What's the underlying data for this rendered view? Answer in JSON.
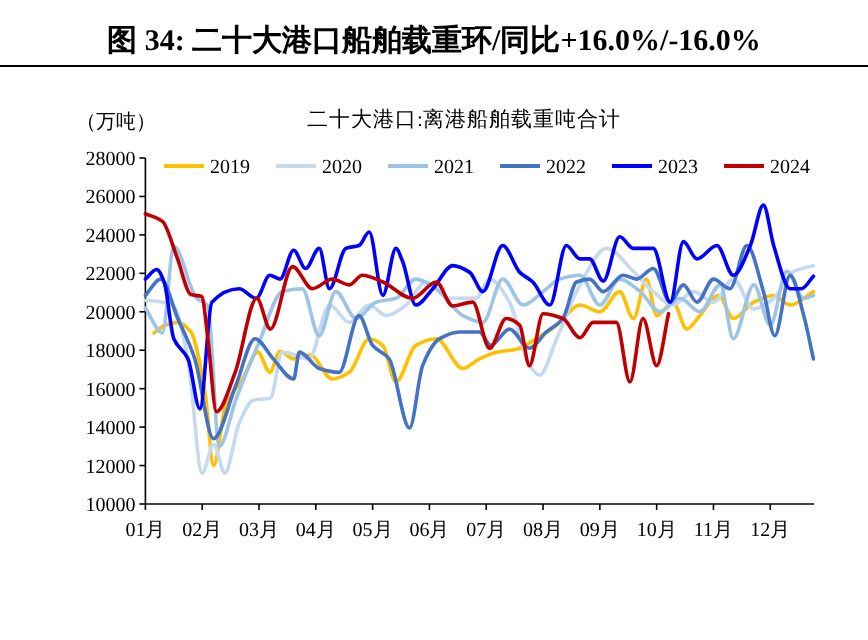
{
  "chart_data": {
    "type": "line",
    "title": "图 34:  二十大港口船舶载重环/同比+16.0%/-16.0%",
    "subtitle": "二十大港口:离港船舶载重吨合计",
    "ylabel": "（万吨）",
    "legend": "top",
    "xlim": [
      1,
      12.77
    ],
    "xticks": [
      {
        "value": 1,
        "label": "01月"
      },
      {
        "value": 2,
        "label": "02月"
      },
      {
        "value": 3,
        "label": "03月"
      },
      {
        "value": 4,
        "label": "04月"
      },
      {
        "value": 5,
        "label": "05月"
      },
      {
        "value": 6,
        "label": "06月"
      },
      {
        "value": 7,
        "label": "07月"
      },
      {
        "value": 8,
        "label": "08月"
      },
      {
        "value": 9,
        "label": "09月"
      },
      {
        "value": 10,
        "label": "10月"
      },
      {
        "value": 11,
        "label": "11月"
      },
      {
        "value": 12,
        "label": "12月"
      }
    ],
    "ylim": [
      10000,
      28000
    ],
    "yticks": [
      10000,
      12000,
      14000,
      16000,
      18000,
      20000,
      22000,
      24000,
      26000,
      28000
    ],
    "series": [
      {
        "name": "2019",
        "color": "#ffc000",
        "x": [
          1.15,
          1.35,
          1.57,
          1.8,
          2.05,
          2.2,
          2.41,
          2.71,
          2.98,
          3.19,
          3.37,
          3.61,
          3.9,
          4.29,
          4.59,
          4.94,
          5.18,
          5.41,
          5.76,
          6.12,
          6.59,
          6.88,
          7.18,
          7.53,
          7.88,
          8.24,
          8.65,
          9.0,
          9.35,
          9.59,
          9.82,
          10.0,
          10.29,
          10.53,
          10.76,
          11.09,
          11.35,
          11.71,
          12.06,
          12.35,
          12.76
        ],
        "values": [
          18900,
          19300,
          19450,
          18950,
          15800,
          12000,
          15100,
          16500,
          17900,
          16850,
          17950,
          17550,
          17750,
          16500,
          16850,
          18600,
          18250,
          16350,
          18250,
          18600,
          17050,
          17550,
          17900,
          18050,
          18600,
          19300,
          20350,
          20000,
          21050,
          19650,
          21700,
          19800,
          20500,
          19100,
          19800,
          20850,
          19650,
          20500,
          20850,
          20350,
          21050
        ]
      },
      {
        "name": "2020",
        "color": "#c5d9f1",
        "x": [
          1.0,
          1.3,
          1.5,
          1.75,
          2.0,
          2.2,
          2.4,
          2.65,
          2.9,
          3.2,
          3.41,
          3.88,
          4.24,
          4.59,
          4.94,
          5.24,
          5.59,
          5.94,
          6.35,
          6.82,
          7.06,
          7.41,
          7.76,
          7.94,
          8.24,
          8.65,
          9.12,
          9.59,
          9.94,
          10.29,
          10.65,
          11.0,
          11.35,
          11.71,
          12.06,
          12.41,
          12.76
        ],
        "values": [
          20600,
          20500,
          20300,
          17500,
          11600,
          13100,
          11600,
          14200,
          15400,
          15500,
          17900,
          17550,
          20350,
          19450,
          20350,
          19800,
          20350,
          21550,
          20700,
          20700,
          21700,
          20500,
          17200,
          16700,
          18600,
          21400,
          23300,
          22100,
          21050,
          20350,
          21050,
          20500,
          21700,
          20150,
          20700,
          22100,
          22400
        ]
      },
      {
        "name": "2021",
        "color": "#9dc3e6",
        "x": [
          1.0,
          1.3,
          1.5,
          1.9,
          2.1,
          2.3,
          2.6,
          3.0,
          3.41,
          3.76,
          4.06,
          4.35,
          4.71,
          5.06,
          5.41,
          5.76,
          6.12,
          6.59,
          6.94,
          7.29,
          7.65,
          8.0,
          8.29,
          8.65,
          9.0,
          9.35,
          9.71,
          10.06,
          10.41,
          10.76,
          11.12,
          11.35,
          11.71,
          12.0,
          12.29,
          12.59,
          12.76
        ],
        "values": [
          20200,
          18900,
          23400,
          20700,
          20300,
          13000,
          15500,
          18400,
          21050,
          21200,
          18750,
          21050,
          19650,
          20500,
          20700,
          21700,
          21200,
          19800,
          19450,
          21700,
          20350,
          21050,
          21700,
          21900,
          20350,
          21700,
          21050,
          20000,
          20700,
          20000,
          21400,
          18600,
          21400,
          19300,
          22100,
          20700,
          20850
        ]
      },
      {
        "name": "2022",
        "color": "#4472c4",
        "x": [
          1.0,
          1.27,
          1.57,
          1.87,
          2.2,
          2.59,
          2.93,
          3.25,
          3.61,
          3.71,
          4.06,
          4.41,
          4.76,
          5.0,
          5.29,
          5.65,
          5.88,
          6.18,
          6.53,
          6.88,
          7.08,
          7.41,
          7.76,
          8.06,
          8.35,
          8.59,
          8.82,
          9.06,
          9.41,
          9.65,
          9.94,
          10.24,
          10.47,
          10.71,
          11.0,
          11.29,
          11.59,
          11.88,
          12.08,
          12.35,
          12.59,
          12.76
        ],
        "values": [
          20850,
          21700,
          19650,
          17550,
          13400,
          16150,
          18600,
          17550,
          16500,
          17900,
          17050,
          16850,
          19800,
          18250,
          17550,
          13950,
          17200,
          18600,
          18950,
          18950,
          18250,
          19100,
          18100,
          18950,
          19650,
          21550,
          21700,
          21050,
          21900,
          21700,
          22250,
          20500,
          21400,
          20500,
          21700,
          21200,
          23450,
          21050,
          18750,
          21900,
          19800,
          17550
        ]
      },
      {
        "name": "2023",
        "color": "#0000ff",
        "x": [
          1.0,
          1.2,
          1.33,
          1.5,
          1.75,
          1.96,
          2.17,
          2.65,
          2.95,
          3.19,
          3.37,
          3.61,
          3.82,
          4.06,
          4.24,
          4.53,
          4.76,
          4.94,
          5.18,
          5.41,
          5.53,
          5.76,
          6.06,
          6.41,
          6.71,
          6.94,
          7.29,
          7.59,
          7.82,
          8.12,
          8.41,
          8.65,
          8.82,
          9.06,
          9.35,
          9.59,
          9.94,
          10.24,
          10.47,
          10.71,
          11.06,
          11.35,
          11.65,
          11.88,
          12.06,
          12.35,
          12.55,
          12.76
        ],
        "values": [
          21700,
          22200,
          21550,
          18600,
          17550,
          14950,
          20500,
          21200,
          20700,
          21900,
          21700,
          23200,
          22250,
          23300,
          21200,
          23300,
          23450,
          24150,
          20850,
          23300,
          22600,
          20350,
          21200,
          22400,
          22050,
          21050,
          23450,
          22050,
          21550,
          20350,
          23450,
          22750,
          22750,
          21600,
          23900,
          23300,
          23300,
          20500,
          23650,
          22750,
          23450,
          21900,
          23450,
          25550,
          23450,
          21200,
          21200,
          21850
        ]
      },
      {
        "name": "2024",
        "color": "#c00000",
        "x": [
          1.0,
          1.3,
          1.56,
          1.8,
          1.99,
          2.1,
          2.25,
          2.58,
          2.96,
          3.2,
          3.59,
          3.94,
          4.29,
          4.59,
          4.82,
          5.18,
          5.7,
          6.12,
          6.41,
          6.76,
          7.06,
          7.35,
          7.59,
          7.76,
          8.0,
          8.35,
          8.65,
          8.88,
          9.29,
          9.53,
          9.76,
          10.0,
          10.21
        ],
        "values": [
          25100,
          24700,
          22800,
          20900,
          20800,
          18600,
          14800,
          16850,
          20700,
          19100,
          22350,
          21200,
          21700,
          21400,
          21900,
          21550,
          20700,
          21550,
          20300,
          20500,
          18100,
          19650,
          19300,
          17200,
          19900,
          19650,
          18650,
          19450,
          19450,
          16350,
          19650,
          17200,
          19900
        ]
      }
    ]
  }
}
